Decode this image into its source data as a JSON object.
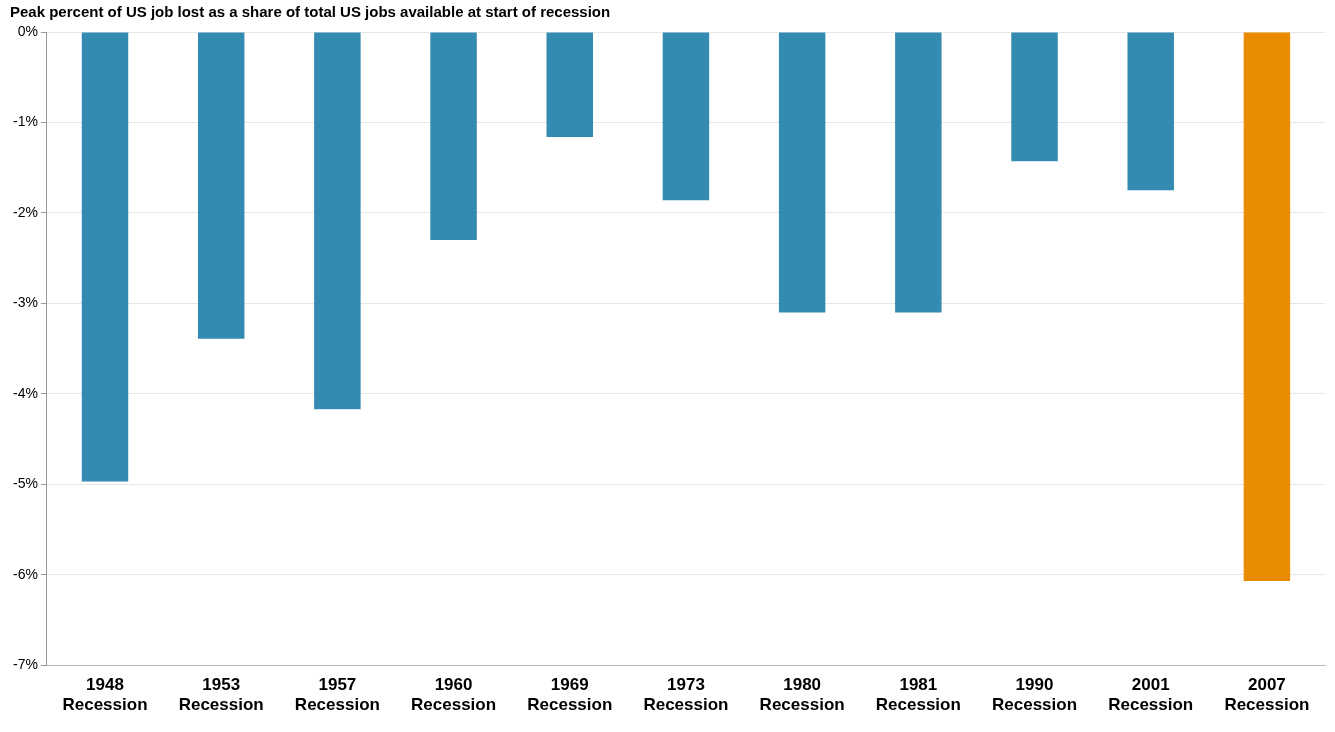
{
  "chart_data": {
    "type": "bar",
    "title": "Peak percent of US job lost as a share of total US jobs available at start of recession",
    "categories": [
      "1948\nRecession",
      "1953\nRecession",
      "1957\nRecession",
      "1960\nRecession",
      "1969\nRecession",
      "1973\nRecession",
      "1980\nRecession",
      "1981\nRecession",
      "1990\nRecession",
      "2001\nRecession",
      "2007\nRecession"
    ],
    "values": [
      -4.97,
      -3.39,
      -4.17,
      -2.3,
      -1.16,
      -1.86,
      -3.1,
      -3.1,
      -1.43,
      -1.75,
      -6.07
    ],
    "colors": [
      "#338bb2",
      "#338bb2",
      "#338bb2",
      "#338bb2",
      "#338bb2",
      "#338bb2",
      "#338bb2",
      "#338bb2",
      "#338bb2",
      "#338bb2",
      "#e88b00"
    ],
    "ylim": [
      -7,
      0
    ],
    "yticks": [
      {
        "value": -7,
        "label": "-7%"
      },
      {
        "value": -6,
        "label": "-6%"
      },
      {
        "value": -5,
        "label": "-5%"
      },
      {
        "value": -4,
        "label": "-4%"
      },
      {
        "value": -3,
        "label": "-3%"
      },
      {
        "value": -2,
        "label": "-2%"
      },
      {
        "value": -1,
        "label": "-1%"
      },
      {
        "value": 0,
        "label": "0%"
      }
    ],
    "grid": "y",
    "legend": false
  }
}
